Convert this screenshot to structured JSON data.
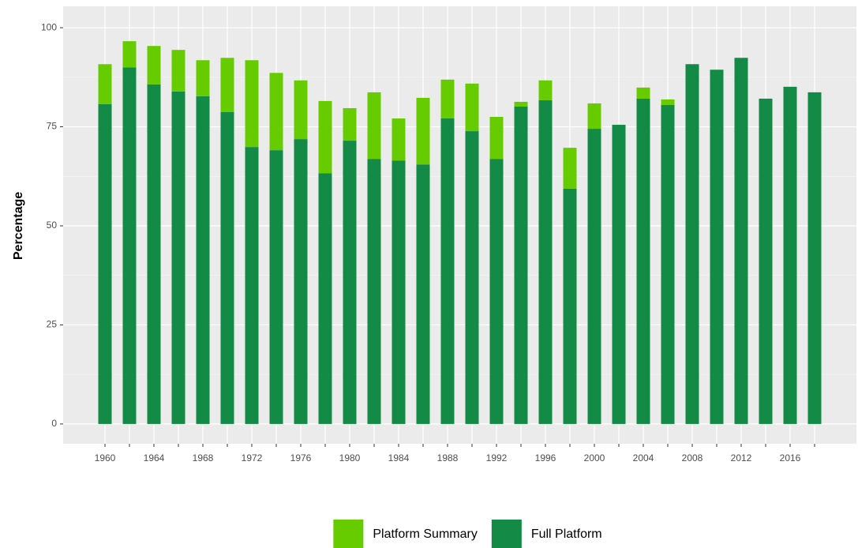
{
  "chart_data": {
    "type": "stacked_bar",
    "y_label": "Percentage",
    "categories": [
      "1960",
      null,
      "1964",
      null,
      "1968",
      null,
      "1972",
      null,
      "1976",
      null,
      "1980",
      null,
      "1984",
      null,
      "1988",
      null,
      "1992",
      null,
      "1996",
      null,
      "2000",
      null,
      "2004",
      null,
      "2008",
      null,
      "2012",
      null,
      "2016",
      null
    ],
    "series": [
      {
        "name": "Platform Summary",
        "color": "#66cc00",
        "values": [
          10.1,
          6.6,
          9.7,
          10.5,
          9.1,
          13.7,
          21.9,
          19.5,
          14.8,
          18.2,
          8.2,
          16.8,
          10.6,
          16.8,
          9.8,
          12.0,
          10.6,
          1.2,
          5.0,
          10.3,
          6.4,
          0,
          2.8,
          1.4,
          0,
          0,
          0,
          0,
          0,
          0
        ]
      },
      {
        "name": "Full Platform",
        "color": "#138a45",
        "values": [
          80.7,
          90.0,
          85.7,
          83.9,
          82.7,
          78.7,
          69.9,
          69.1,
          71.9,
          63.3,
          71.5,
          66.9,
          66.5,
          65.5,
          77.1,
          73.9,
          66.9,
          80.1,
          81.7,
          59.4,
          74.5,
          75.5,
          82.1,
          80.5,
          90.8,
          89.4,
          92.4,
          82.1,
          85.1,
          83.7
        ]
      }
    ],
    "ylim": [
      -5,
      105.4
    ],
    "yticks": [
      0,
      25,
      50,
      75,
      100
    ],
    "grid": true,
    "legend": "bottom"
  }
}
